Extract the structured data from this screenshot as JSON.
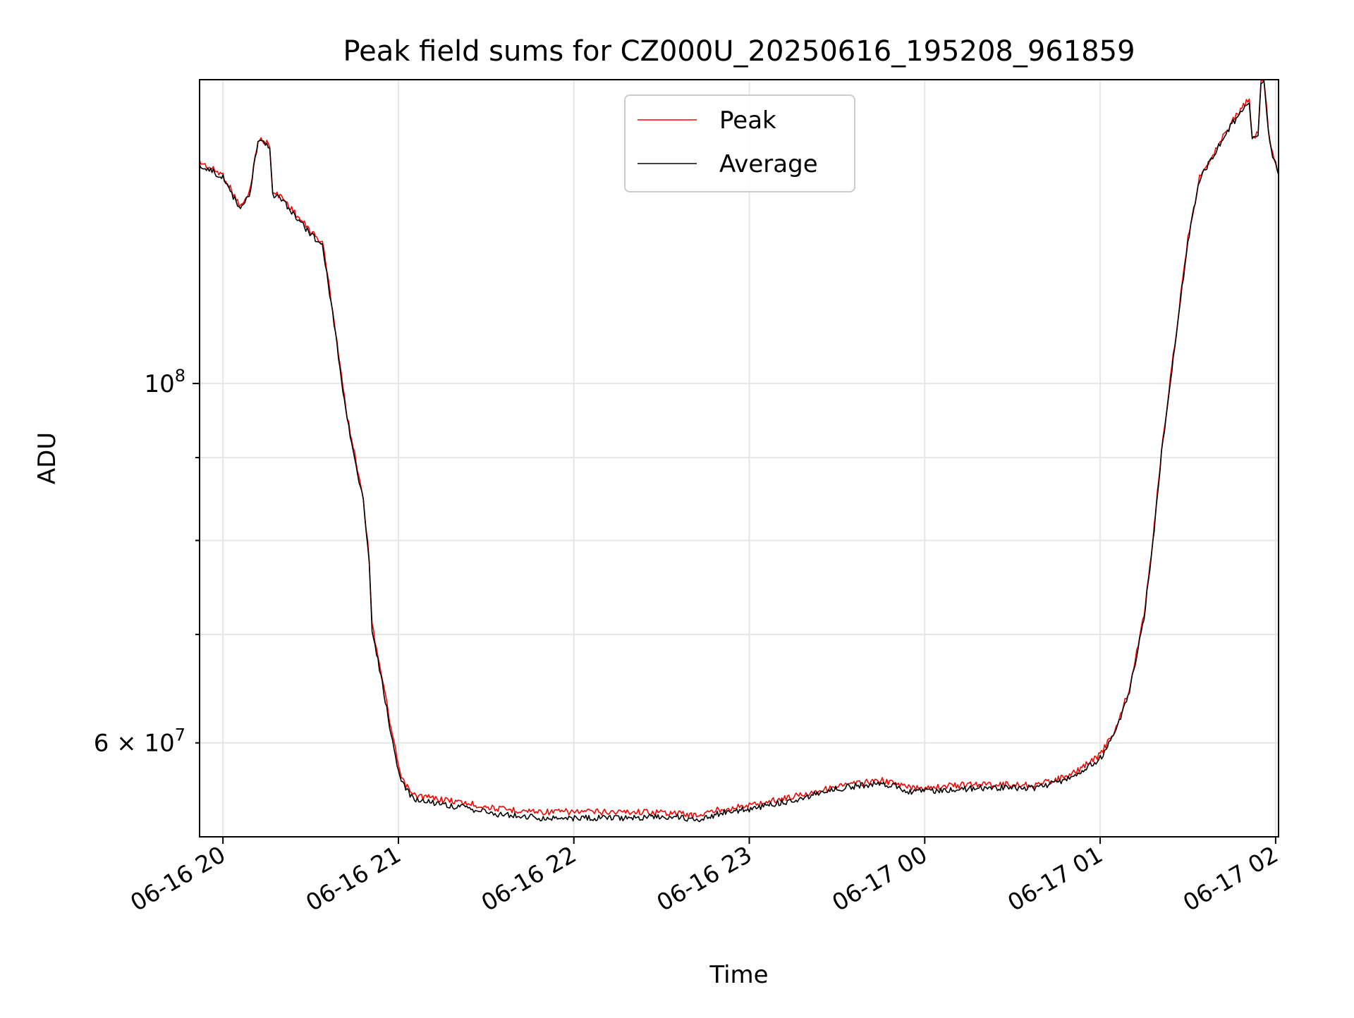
{
  "chart_data": {
    "type": "line",
    "title": "Peak field sums for CZ000U_20250616_195208_961859",
    "xlabel": "Time",
    "ylabel": "ADU",
    "yscale": "log",
    "x_tick_labels": [
      "06-16 20",
      "06-16 21",
      "06-16 22",
      "06-16 23",
      "06-17 00",
      "06-17 01",
      "06-17 02"
    ],
    "x_tick_times": [
      "2025-06-16 20:00",
      "2025-06-16 21:00",
      "2025-06-16 22:00",
      "2025-06-16 23:00",
      "2025-06-17 00:00",
      "2025-06-17 01:00",
      "2025-06-17 02:00"
    ],
    "xlim": [
      "2025-06-16 19:52",
      "2025-06-17 02:01"
    ],
    "ylim": [
      52500000,
      154000000
    ],
    "y_major_ticks": [
      {
        "value": 100000000,
        "base": "10",
        "exp": "8"
      }
    ],
    "y_minor_ticks": [
      {
        "value": 60000000,
        "mant": "6",
        "base": "10",
        "exp": "7"
      },
      {
        "value": 70000000
      },
      {
        "value": 80000000
      },
      {
        "value": 90000000
      }
    ],
    "grid": true,
    "legend_position": "upper center",
    "colors": {
      "peak": "#ff0000",
      "average": "#000000",
      "grid": "#e6e6e6"
    },
    "series": [
      {
        "name": "Peak",
        "color": "#ff0000",
        "points": [
          [
            "2025-06-16 19:52",
            137000000
          ],
          [
            "2025-06-16 20:00",
            134500000
          ],
          [
            "2025-06-16 20:03",
            131500000
          ],
          [
            "2025-06-16 20:06",
            128500000
          ],
          [
            "2025-06-16 20:09",
            131000000
          ],
          [
            "2025-06-16 20:12",
            141500000
          ],
          [
            "2025-06-16 20:16",
            140500000
          ],
          [
            "2025-06-16 20:17",
            131000000
          ],
          [
            "2025-06-16 20:20",
            130500000
          ],
          [
            "2025-06-16 20:26",
            126500000
          ],
          [
            "2025-06-16 20:33",
            122500000
          ],
          [
            "2025-06-16 20:34",
            122500000
          ],
          [
            "2025-06-16 20:38",
            109500000
          ],
          [
            "2025-06-16 20:42",
            96500000
          ],
          [
            "2025-06-16 20:45",
            90500000
          ],
          [
            "2025-06-16 20:48",
            85000000
          ],
          [
            "2025-06-16 20:50",
            78000000
          ],
          [
            "2025-06-16 20:51",
            71000000
          ],
          [
            "2025-06-16 20:54",
            66500000
          ],
          [
            "2025-06-16 20:58",
            60500000
          ],
          [
            "2025-06-16 21:01",
            57000000
          ],
          [
            "2025-06-16 21:05",
            55700000
          ],
          [
            "2025-06-16 21:20",
            55200000
          ],
          [
            "2025-06-16 21:35",
            54600000
          ],
          [
            "2025-06-16 21:50",
            54400000
          ],
          [
            "2025-06-16 22:10",
            54400000
          ],
          [
            "2025-06-16 22:25",
            54400000
          ],
          [
            "2025-06-16 22:35",
            54300000
          ],
          [
            "2025-06-16 22:42",
            54100000
          ],
          [
            "2025-06-16 22:50",
            54600000
          ],
          [
            "2025-06-16 23:00",
            54900000
          ],
          [
            "2025-06-16 23:15",
            55600000
          ],
          [
            "2025-06-16 23:30",
            56400000
          ],
          [
            "2025-06-16 23:45",
            56900000
          ],
          [
            "2025-06-16 23:50",
            56600000
          ],
          [
            "2025-06-16 23:55",
            56300000
          ],
          [
            "2025-06-17 00:05",
            56400000
          ],
          [
            "2025-06-17 00:20",
            56600000
          ],
          [
            "2025-06-17 00:38",
            56500000
          ],
          [
            "2025-06-17 00:50",
            57300000
          ],
          [
            "2025-06-17 01:00",
            59000000
          ],
          [
            "2025-06-17 01:05",
            61000000
          ],
          [
            "2025-06-17 01:10",
            64800000
          ],
          [
            "2025-06-17 01:15",
            72000000
          ],
          [
            "2025-06-17 01:18",
            80000000
          ],
          [
            "2025-06-17 01:21",
            91000000
          ],
          [
            "2025-06-17 01:25",
            104000000
          ],
          [
            "2025-06-17 01:30",
            123000000
          ],
          [
            "2025-06-17 01:34",
            134000000
          ],
          [
            "2025-06-17 01:40",
            140000000
          ],
          [
            "2025-06-17 01:45",
            145000000
          ],
          [
            "2025-06-17 01:51",
            150000000
          ],
          [
            "2025-06-17 01:52",
            142000000
          ],
          [
            "2025-06-17 01:54",
            142500000
          ],
          [
            "2025-06-17 01:55",
            153500000
          ],
          [
            "2025-06-17 01:56",
            153800000
          ],
          [
            "2025-06-17 01:58",
            141000000
          ],
          [
            "2025-06-17 02:01",
            135000000
          ]
        ]
      },
      {
        "name": "Average",
        "color": "#000000",
        "points": [
          [
            "2025-06-16 19:52",
            136500000
          ],
          [
            "2025-06-16 20:00",
            134000000
          ],
          [
            "2025-06-16 20:03",
            131000000
          ],
          [
            "2025-06-16 20:06",
            128000000
          ],
          [
            "2025-06-16 20:09",
            130500000
          ],
          [
            "2025-06-16 20:12",
            141000000
          ],
          [
            "2025-06-16 20:16",
            140000000
          ],
          [
            "2025-06-16 20:17",
            130500000
          ],
          [
            "2025-06-16 20:20",
            130000000
          ],
          [
            "2025-06-16 20:26",
            126000000
          ],
          [
            "2025-06-16 20:33",
            122000000
          ],
          [
            "2025-06-16 20:34",
            122000000
          ],
          [
            "2025-06-16 20:38",
            109000000
          ],
          [
            "2025-06-16 20:42",
            96000000
          ],
          [
            "2025-06-16 20:45",
            90000000
          ],
          [
            "2025-06-16 20:48",
            84500000
          ],
          [
            "2025-06-16 20:50",
            77500000
          ],
          [
            "2025-06-16 20:51",
            70500000
          ],
          [
            "2025-06-16 20:54",
            66000000
          ],
          [
            "2025-06-16 20:58",
            60000000
          ],
          [
            "2025-06-16 21:01",
            56700000
          ],
          [
            "2025-06-16 21:05",
            55400000
          ],
          [
            "2025-06-16 21:20",
            54800000
          ],
          [
            "2025-06-16 21:35",
            54200000
          ],
          [
            "2025-06-16 21:50",
            53900000
          ],
          [
            "2025-06-16 22:10",
            53900000
          ],
          [
            "2025-06-16 22:25",
            54000000
          ],
          [
            "2025-06-16 22:35",
            54000000
          ],
          [
            "2025-06-16 22:42",
            53800000
          ],
          [
            "2025-06-16 22:50",
            54300000
          ],
          [
            "2025-06-16 23:00",
            54600000
          ],
          [
            "2025-06-16 23:15",
            55300000
          ],
          [
            "2025-06-16 23:30",
            56200000
          ],
          [
            "2025-06-16 23:45",
            56700000
          ],
          [
            "2025-06-16 23:50",
            56400000
          ],
          [
            "2025-06-16 23:55",
            56000000
          ],
          [
            "2025-06-17 00:05",
            56100000
          ],
          [
            "2025-06-17 00:20",
            56300000
          ],
          [
            "2025-06-17 00:38",
            56300000
          ],
          [
            "2025-06-17 00:50",
            57100000
          ],
          [
            "2025-06-17 01:00",
            58700000
          ],
          [
            "2025-06-17 01:05",
            60700000
          ],
          [
            "2025-06-17 01:10",
            64500000
          ],
          [
            "2025-06-17 01:15",
            71700000
          ],
          [
            "2025-06-17 01:18",
            79700000
          ],
          [
            "2025-06-17 01:21",
            90600000
          ],
          [
            "2025-06-17 01:25",
            103500000
          ],
          [
            "2025-06-17 01:30",
            122500000
          ],
          [
            "2025-06-17 01:34",
            133500000
          ],
          [
            "2025-06-17 01:40",
            139500000
          ],
          [
            "2025-06-17 01:45",
            144500000
          ],
          [
            "2025-06-17 01:51",
            149500000
          ],
          [
            "2025-06-17 01:52",
            141500000
          ],
          [
            "2025-06-17 01:54",
            142000000
          ],
          [
            "2025-06-17 01:55",
            153000000
          ],
          [
            "2025-06-17 01:56",
            153300000
          ],
          [
            "2025-06-17 01:58",
            140500000
          ],
          [
            "2025-06-17 02:01",
            134500000
          ]
        ]
      }
    ]
  }
}
